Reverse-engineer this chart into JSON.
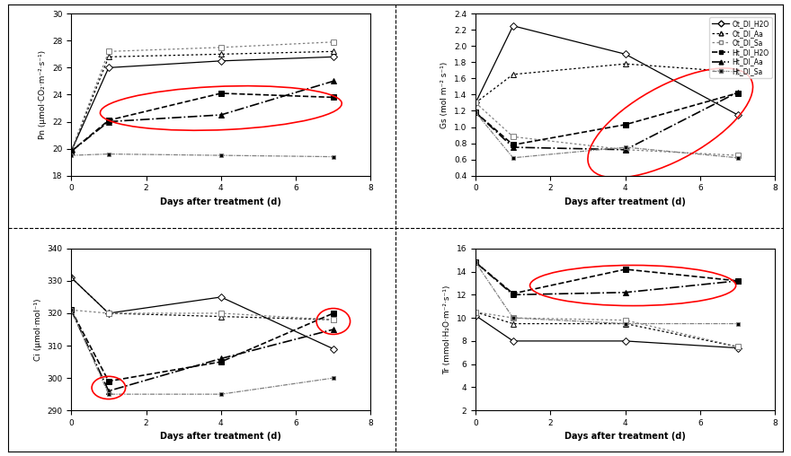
{
  "x": [
    0,
    1,
    4,
    7
  ],
  "pn": {
    "Ot_DI_H2O": [
      19.8,
      26.0,
      26.5,
      26.8
    ],
    "Ot_DI_Aa": [
      19.8,
      26.8,
      27.0,
      27.2
    ],
    "Ot_DI_Sa": [
      19.8,
      27.2,
      27.5,
      27.9
    ],
    "Ht_DI_H2O": [
      19.8,
      22.1,
      24.1,
      23.8
    ],
    "Ht_DI_Aa": [
      19.8,
      22.0,
      22.5,
      25.0
    ],
    "Ht_DI_Sa": [
      19.5,
      19.6,
      19.5,
      19.4
    ]
  },
  "gs": {
    "Ot_DI_H2O": [
      1.3,
      2.25,
      1.9,
      1.15
    ],
    "Ot_DI_Aa": [
      1.3,
      1.65,
      1.78,
      1.68
    ],
    "Ot_DI_Sa": [
      1.3,
      0.88,
      0.72,
      0.65
    ],
    "Ht_DI_H2O": [
      1.18,
      0.78,
      1.03,
      1.42
    ],
    "Ht_DI_Aa": [
      1.18,
      0.75,
      0.72,
      1.43
    ],
    "Ht_DI_Sa": [
      1.18,
      0.62,
      0.75,
      0.62
    ]
  },
  "ci": {
    "Ot_DI_H2O": [
      331,
      320,
      325,
      309
    ],
    "Ot_DI_Aa": [
      331,
      320,
      319,
      318
    ],
    "Ot_DI_Sa": [
      321,
      320,
      320,
      318
    ],
    "Ht_DI_H2O": [
      321,
      299,
      305,
      320
    ],
    "Ht_DI_Aa": [
      321,
      296,
      306,
      315
    ],
    "Ht_DI_Sa": [
      321,
      295,
      295,
      300
    ]
  },
  "tr": {
    "Ot_DI_H2O": [
      10.2,
      8.0,
      8.0,
      7.4
    ],
    "Ot_DI_Aa": [
      10.5,
      9.5,
      9.5,
      7.5
    ],
    "Ot_DI_Sa": [
      10.5,
      10.0,
      9.8,
      7.5
    ],
    "Ht_DI_H2O": [
      14.8,
      12.1,
      14.2,
      13.2
    ],
    "Ht_DI_Aa": [
      14.8,
      12.0,
      12.2,
      13.2
    ],
    "Ht_DI_Sa": [
      14.8,
      10.0,
      9.5,
      9.5
    ]
  },
  "legend_labels": [
    "Ot_DI_H2O",
    "Ot_DI_Aa",
    "Ot_DI_Sa",
    "Ht_DI_H2O",
    "Ht_DI_Aa",
    "Ht_DI_Sa"
  ],
  "pn_ylabel": "Pn (μmol·CO₂·m⁻²·s⁻¹)",
  "gs_ylabel": "Gs (mol m⁻² s⁻¹)",
  "ci_ylabel": "Ci (μmol·mol⁻¹)",
  "tr_ylabel": "Tr (mmol·H₂O·m⁻²·s⁻¹)",
  "xlabel": "Days after treatment (d)",
  "pn_ylim": [
    18,
    30
  ],
  "gs_ylim": [
    0.4,
    2.4
  ],
  "ci_ylim": [
    290,
    340
  ],
  "tr_ylim": [
    2,
    16
  ]
}
